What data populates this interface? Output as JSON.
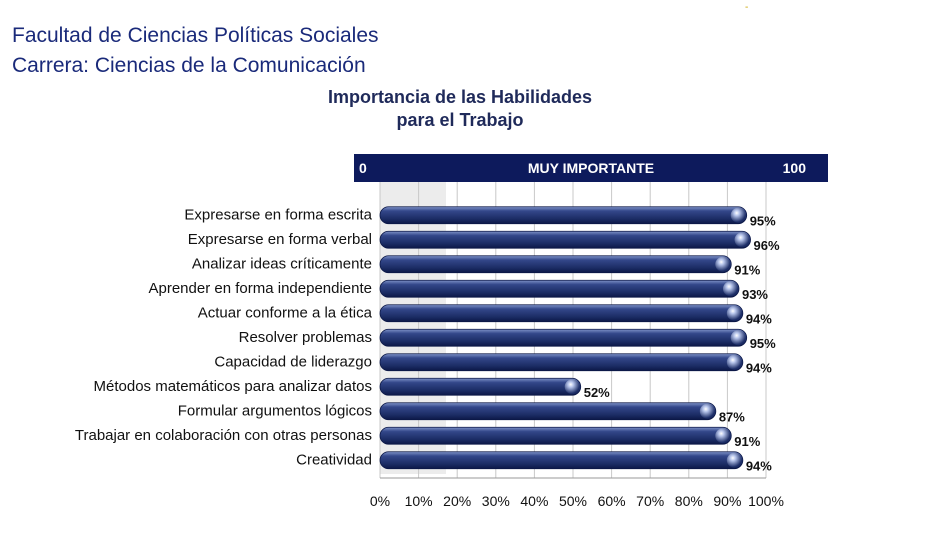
{
  "header": {
    "faculty": "Facultad de Ciencias Políticas Sociales",
    "career": "Carrera: Ciencias de la Comunicación",
    "mark": "-"
  },
  "banner": {
    "min": "0",
    "label": "MUY IMPORTANTE",
    "max": "100"
  },
  "chart_data": {
    "type": "bar",
    "orientation": "horizontal",
    "title": [
      "Importancia de las Habilidades",
      "para el Trabajo"
    ],
    "categories": [
      "Expresarse en forma escrita",
      "Expresarse en forma verbal",
      "Analizar ideas críticamente",
      "Aprender en forma independiente",
      "Actuar conforme a la ética",
      "Resolver problemas",
      "Capacidad de liderazgo",
      "Métodos matemáticos para analizar datos",
      "Formular argumentos lógicos",
      "Trabajar en colaboración con otras personas",
      "Creatividad"
    ],
    "values": [
      95,
      96,
      91,
      93,
      94,
      95,
      94,
      52,
      87,
      91,
      94
    ],
    "value_labels": [
      "95%",
      "96%",
      "91%",
      "93%",
      "94%",
      "95%",
      "94%",
      "52%",
      "87%",
      "91%",
      "94%"
    ],
    "xlim": [
      0,
      100
    ],
    "xticks": [
      "0%",
      "10%",
      "20%",
      "30%",
      "40%",
      "50%",
      "60%",
      "70%",
      "80%",
      "90%",
      "100%"
    ],
    "bar_color": "#1f3370",
    "grid": true
  }
}
